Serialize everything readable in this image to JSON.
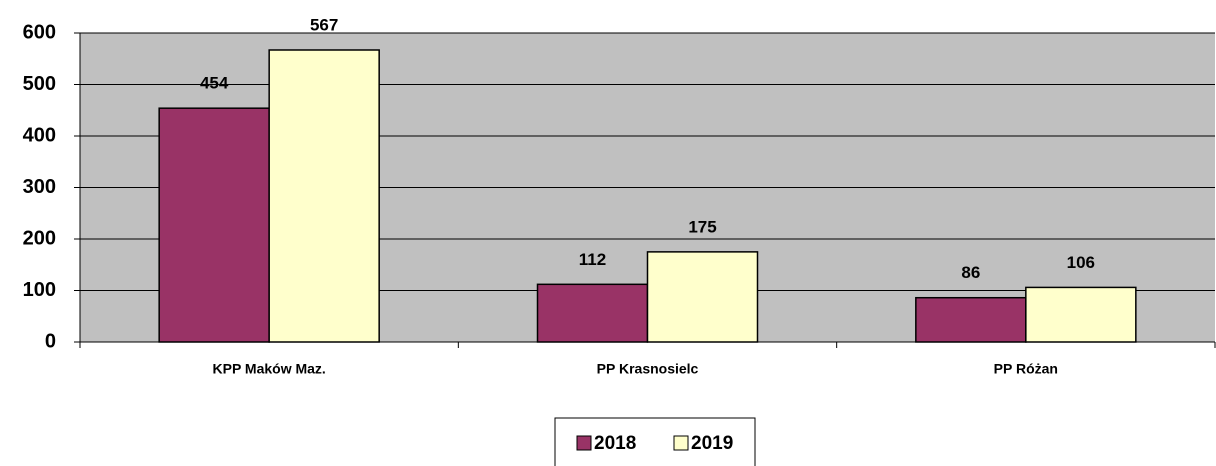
{
  "chart_data": {
    "type": "bar",
    "categories": [
      "KPP Maków Maz.",
      "PP Krasnosielc",
      "PP Różan"
    ],
    "series": [
      {
        "name": "2018",
        "color": "#993366",
        "values": [
          454,
          112,
          86
        ]
      },
      {
        "name": "2019",
        "color": "#ffffcc",
        "values": [
          567,
          175,
          106
        ]
      }
    ],
    "ylim": [
      0,
      600
    ],
    "yticks": [
      0,
      100,
      200,
      300,
      400,
      500,
      600
    ],
    "grid": true,
    "plot_background": "#c0c0c0",
    "legend": "bottom"
  }
}
